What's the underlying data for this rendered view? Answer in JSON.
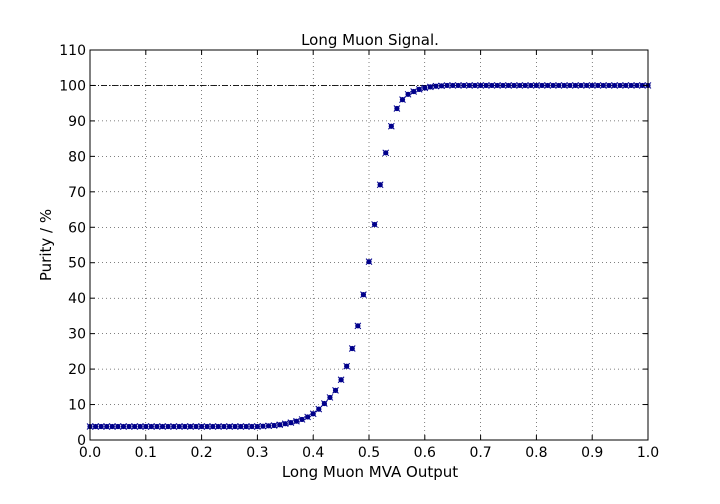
{
  "chart_data": {
    "type": "scatter",
    "title": "Long Muon Signal.",
    "xlabel": "Long Muon MVA Output",
    "ylabel": "Purity / %",
    "xlim": [
      0.0,
      1.0
    ],
    "ylim": [
      0,
      110
    ],
    "xticks": [
      "0.0",
      "0.1",
      "0.2",
      "0.3",
      "0.4",
      "0.5",
      "0.6",
      "0.7",
      "0.8",
      "0.9",
      "1.0"
    ],
    "yticks": [
      "0",
      "10",
      "20",
      "30",
      "40",
      "50",
      "60",
      "70",
      "80",
      "90",
      "100",
      "110"
    ],
    "grid": true,
    "reference_line": {
      "y": 100,
      "style": "dash-dot"
    },
    "marker_color": "#00008b",
    "series": [
      {
        "x": [
          0.0,
          0.01,
          0.02,
          0.03,
          0.04,
          0.05,
          0.06,
          0.07,
          0.08,
          0.09,
          0.1,
          0.11,
          0.12,
          0.13,
          0.14,
          0.15,
          0.16,
          0.17,
          0.18,
          0.19,
          0.2,
          0.21,
          0.22,
          0.23,
          0.24,
          0.25,
          0.26,
          0.27,
          0.28,
          0.29,
          0.3,
          0.31,
          0.32,
          0.33,
          0.34,
          0.35,
          0.36,
          0.37,
          0.38,
          0.39,
          0.4,
          0.41,
          0.42,
          0.43,
          0.44,
          0.45,
          0.46,
          0.47,
          0.48,
          0.49,
          0.5,
          0.51,
          0.52,
          0.53,
          0.54,
          0.55,
          0.56,
          0.57,
          0.58,
          0.59,
          0.6,
          0.61,
          0.62,
          0.63,
          0.64,
          0.65,
          0.66,
          0.67,
          0.68,
          0.69,
          0.7,
          0.71,
          0.72,
          0.73,
          0.74,
          0.75,
          0.76,
          0.77,
          0.78,
          0.79,
          0.8,
          0.81,
          0.82,
          0.83,
          0.84,
          0.85,
          0.86,
          0.87,
          0.88,
          0.89,
          0.9,
          0.91,
          0.92,
          0.93,
          0.94,
          0.95,
          0.96,
          0.97,
          0.98,
          0.99,
          1.0
        ],
        "y": [
          3.8,
          3.8,
          3.8,
          3.8,
          3.8,
          3.8,
          3.8,
          3.8,
          3.8,
          3.8,
          3.8,
          3.8,
          3.8,
          3.8,
          3.8,
          3.8,
          3.8,
          3.8,
          3.8,
          3.8,
          3.8,
          3.8,
          3.8,
          3.8,
          3.8,
          3.8,
          3.8,
          3.8,
          3.8,
          3.8,
          3.8,
          3.9,
          4.0,
          4.1,
          4.3,
          4.6,
          4.9,
          5.3,
          5.8,
          6.5,
          7.4,
          8.7,
          10.3,
          12.0,
          14.0,
          17.0,
          20.8,
          25.8,
          32.2,
          41.0,
          50.3,
          60.8,
          72.0,
          81.0,
          88.5,
          93.5,
          96.0,
          97.5,
          98.3,
          98.9,
          99.3,
          99.6,
          99.8,
          99.9,
          100,
          100,
          100,
          100,
          100,
          100,
          100,
          100,
          100,
          100,
          100,
          100,
          100,
          100,
          100,
          100,
          100,
          100,
          100,
          100,
          100,
          100,
          100,
          100,
          100,
          100,
          100,
          100,
          100,
          100,
          100,
          100,
          100,
          100,
          100,
          100,
          100
        ]
      }
    ]
  }
}
